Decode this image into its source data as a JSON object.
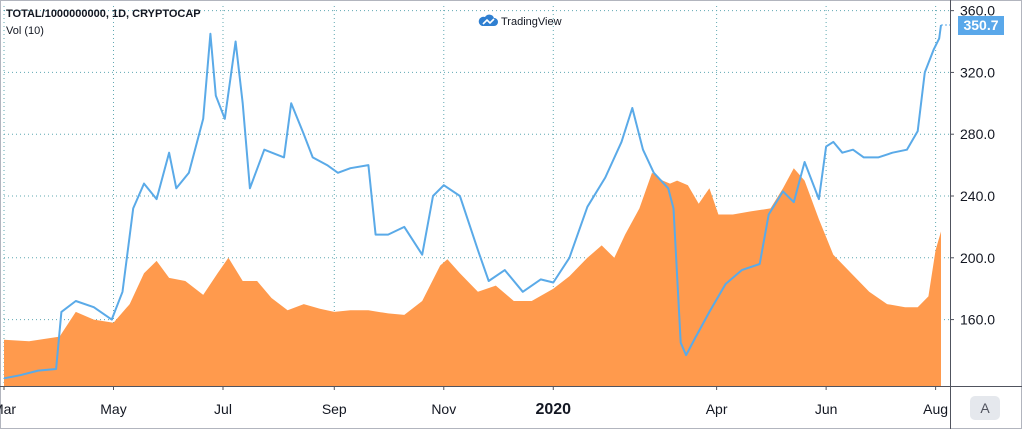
{
  "header": {
    "symbol_line": "TOTAL/1000000000, 1D, CRYPTOCAP",
    "volume_line": "Vol (10)",
    "brand": "TradingView"
  },
  "price_tag": "350.7",
  "scale_button": "A",
  "colors": {
    "price_line": "#5aaae8",
    "volume_area": "#ff9a4d",
    "grid": "#5fa8b2",
    "price_tag": "#5aa8ea"
  },
  "chart_data": {
    "type": "line",
    "title": "TOTAL/1000000000, 1D, CRYPTOCAP",
    "x_tick_labels": [
      {
        "label": "Mar",
        "date": "2019-03-01"
      },
      {
        "label": "May",
        "date": "2019-05-01"
      },
      {
        "label": "Jul",
        "date": "2019-07-01"
      },
      {
        "label": "Sep",
        "date": "2019-09-01"
      },
      {
        "label": "Nov",
        "date": "2019-11-01"
      },
      {
        "label": "2020",
        "date": "2020-01-01",
        "bold": true
      },
      {
        "label": "Apr",
        "date": "2020-04-01"
      },
      {
        "label": "Jun",
        "date": "2020-06-01"
      },
      {
        "label": "Aug",
        "date": "2020-08-01"
      }
    ],
    "xlim": [
      "2019-03-01",
      "2020-08-04"
    ],
    "y_ticks": [
      160,
      200,
      240,
      280,
      320,
      360
    ],
    "ylim": [
      117,
      363
    ],
    "grid": true,
    "last_value": 350.7,
    "series": [
      {
        "name": "TOTAL/1000000000",
        "points": [
          [
            "2019-03-01",
            122
          ],
          [
            "2019-03-10",
            124
          ],
          [
            "2019-03-20",
            127
          ],
          [
            "2019-03-30",
            128
          ],
          [
            "2019-04-02",
            165
          ],
          [
            "2019-04-10",
            172
          ],
          [
            "2019-04-20",
            168
          ],
          [
            "2019-04-30",
            160
          ],
          [
            "2019-05-06",
            178
          ],
          [
            "2019-05-12",
            232
          ],
          [
            "2019-05-18",
            248
          ],
          [
            "2019-05-25",
            238
          ],
          [
            "2019-06-01",
            268
          ],
          [
            "2019-06-05",
            245
          ],
          [
            "2019-06-12",
            255
          ],
          [
            "2019-06-20",
            290
          ],
          [
            "2019-06-24",
            345
          ],
          [
            "2019-06-27",
            305
          ],
          [
            "2019-07-02",
            290
          ],
          [
            "2019-07-08",
            340
          ],
          [
            "2019-07-12",
            300
          ],
          [
            "2019-07-16",
            245
          ],
          [
            "2019-07-24",
            270
          ],
          [
            "2019-08-04",
            265
          ],
          [
            "2019-08-08",
            300
          ],
          [
            "2019-08-15",
            280
          ],
          [
            "2019-08-20",
            265
          ],
          [
            "2019-08-28",
            260
          ],
          [
            "2019-09-03",
            255
          ],
          [
            "2019-09-10",
            258
          ],
          [
            "2019-09-20",
            260
          ],
          [
            "2019-09-24",
            215
          ],
          [
            "2019-10-01",
            215
          ],
          [
            "2019-10-10",
            220
          ],
          [
            "2019-10-20",
            202
          ],
          [
            "2019-10-26",
            240
          ],
          [
            "2019-11-01",
            247
          ],
          [
            "2019-11-10",
            240
          ],
          [
            "2019-11-20",
            205
          ],
          [
            "2019-11-26",
            185
          ],
          [
            "2019-12-05",
            192
          ],
          [
            "2019-12-15",
            178
          ],
          [
            "2019-12-25",
            186
          ],
          [
            "2020-01-01",
            184
          ],
          [
            "2020-01-10",
            200
          ],
          [
            "2020-01-20",
            233
          ],
          [
            "2020-01-30",
            252
          ],
          [
            "2020-02-08",
            275
          ],
          [
            "2020-02-14",
            297
          ],
          [
            "2020-02-20",
            270
          ],
          [
            "2020-02-26",
            255
          ],
          [
            "2020-03-05",
            245
          ],
          [
            "2020-03-08",
            232
          ],
          [
            "2020-03-12",
            145
          ],
          [
            "2020-03-15",
            137
          ],
          [
            "2020-03-20",
            148
          ],
          [
            "2020-03-28",
            165
          ],
          [
            "2020-04-06",
            183
          ],
          [
            "2020-04-15",
            192
          ],
          [
            "2020-04-25",
            196
          ],
          [
            "2020-04-30",
            228
          ],
          [
            "2020-05-08",
            243
          ],
          [
            "2020-05-14",
            236
          ],
          [
            "2020-05-20",
            262
          ],
          [
            "2020-05-28",
            238
          ],
          [
            "2020-06-01",
            272
          ],
          [
            "2020-06-05",
            275
          ],
          [
            "2020-06-10",
            268
          ],
          [
            "2020-06-16",
            270
          ],
          [
            "2020-06-22",
            265
          ],
          [
            "2020-06-30",
            265
          ],
          [
            "2020-07-08",
            268
          ],
          [
            "2020-07-16",
            270
          ],
          [
            "2020-07-22",
            282
          ],
          [
            "2020-07-26",
            320
          ],
          [
            "2020-07-31",
            335
          ],
          [
            "2020-08-03",
            342
          ],
          [
            "2020-08-04",
            350.7
          ]
        ]
      },
      {
        "name": "Vol (10)",
        "area": true,
        "points": [
          [
            "2019-03-01",
            147
          ],
          [
            "2019-03-15",
            146
          ],
          [
            "2019-04-01",
            149
          ],
          [
            "2019-04-10",
            165
          ],
          [
            "2019-04-20",
            160
          ],
          [
            "2019-05-01",
            158
          ],
          [
            "2019-05-10",
            170
          ],
          [
            "2019-05-18",
            190
          ],
          [
            "2019-05-25",
            198
          ],
          [
            "2019-06-01",
            187
          ],
          [
            "2019-06-10",
            185
          ],
          [
            "2019-06-20",
            176
          ],
          [
            "2019-06-28",
            190
          ],
          [
            "2019-07-04",
            200
          ],
          [
            "2019-07-12",
            185
          ],
          [
            "2019-07-20",
            185
          ],
          [
            "2019-07-28",
            174
          ],
          [
            "2019-08-06",
            166
          ],
          [
            "2019-08-15",
            170
          ],
          [
            "2019-08-24",
            167
          ],
          [
            "2019-09-01",
            165
          ],
          [
            "2019-09-10",
            166
          ],
          [
            "2019-09-20",
            166
          ],
          [
            "2019-10-01",
            164
          ],
          [
            "2019-10-10",
            163
          ],
          [
            "2019-10-20",
            172
          ],
          [
            "2019-10-30",
            195
          ],
          [
            "2019-11-03",
            199
          ],
          [
            "2019-11-10",
            190
          ],
          [
            "2019-11-20",
            178
          ],
          [
            "2019-11-30",
            182
          ],
          [
            "2019-12-10",
            172
          ],
          [
            "2019-12-20",
            172
          ],
          [
            "2020-01-01",
            180
          ],
          [
            "2020-01-10",
            188
          ],
          [
            "2020-01-20",
            200
          ],
          [
            "2020-01-28",
            208
          ],
          [
            "2020-02-04",
            200
          ],
          [
            "2020-02-10",
            215
          ],
          [
            "2020-02-18",
            232
          ],
          [
            "2020-02-25",
            255
          ],
          [
            "2020-03-02",
            250
          ],
          [
            "2020-03-06",
            248
          ],
          [
            "2020-03-10",
            250
          ],
          [
            "2020-03-16",
            247
          ],
          [
            "2020-03-22",
            235
          ],
          [
            "2020-03-28",
            245
          ],
          [
            "2020-04-02",
            228
          ],
          [
            "2020-04-10",
            228
          ],
          [
            "2020-04-20",
            230
          ],
          [
            "2020-05-01",
            232
          ],
          [
            "2020-05-08",
            245
          ],
          [
            "2020-05-14",
            258
          ],
          [
            "2020-05-20",
            250
          ],
          [
            "2020-05-28",
            225
          ],
          [
            "2020-06-05",
            202
          ],
          [
            "2020-06-15",
            190
          ],
          [
            "2020-06-25",
            178
          ],
          [
            "2020-07-05",
            170
          ],
          [
            "2020-07-15",
            168
          ],
          [
            "2020-07-22",
            168
          ],
          [
            "2020-07-28",
            175
          ],
          [
            "2020-08-01",
            205
          ],
          [
            "2020-08-04",
            217
          ]
        ]
      }
    ]
  }
}
